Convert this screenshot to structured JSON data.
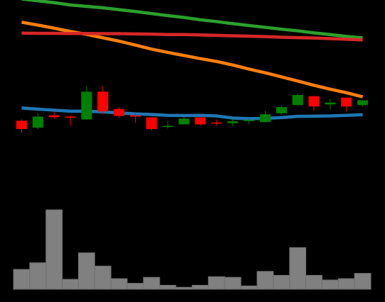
{
  "chart_data": {
    "type": "candlestick",
    "background": "#000000",
    "candle_up_color": "#008000",
    "candle_down_color": "#ff0000",
    "volume_color": "#808080",
    "price_ylim": [
      0,
      100
    ],
    "volume_ylim": [
      0,
      12
    ],
    "candles": [
      {
        "o": 41.3,
        "h": 41.9,
        "l": 35.4,
        "c": 37.2
      },
      {
        "o": 37.9,
        "h": 44.9,
        "l": 37.2,
        "c": 43.3
      },
      {
        "o": 43.9,
        "h": 45.8,
        "l": 42.0,
        "c": 43.0
      },
      {
        "o": 43.3,
        "h": 43.9,
        "l": 38.8,
        "c": 42.9
      },
      {
        "o": 41.9,
        "h": 58.1,
        "l": 41.6,
        "c": 55.4
      },
      {
        "o": 55.4,
        "h": 58.1,
        "l": 44.6,
        "c": 45.8
      },
      {
        "o": 47.0,
        "h": 47.9,
        "l": 42.6,
        "c": 43.6
      },
      {
        "o": 43.9,
        "h": 44.9,
        "l": 40.3,
        "c": 43.3
      },
      {
        "o": 42.9,
        "h": 42.9,
        "l": 36.5,
        "c": 37.2
      },
      {
        "o": 38.2,
        "h": 41.3,
        "l": 37.5,
        "c": 38.8
      },
      {
        "o": 39.5,
        "h": 42.9,
        "l": 39.5,
        "c": 42.3
      },
      {
        "o": 42.9,
        "h": 42.9,
        "l": 38.8,
        "c": 39.5
      },
      {
        "o": 40.4,
        "h": 41.9,
        "l": 38.8,
        "c": 40.1
      },
      {
        "o": 40.1,
        "h": 42.0,
        "l": 38.5,
        "c": 41.0
      },
      {
        "o": 41.3,
        "h": 42.3,
        "l": 39.5,
        "c": 41.6
      },
      {
        "o": 40.6,
        "h": 46.1,
        "l": 40.6,
        "c": 44.4
      },
      {
        "o": 44.9,
        "h": 48.9,
        "l": 44.2,
        "c": 47.9
      },
      {
        "o": 48.9,
        "h": 54.7,
        "l": 48.2,
        "c": 53.8
      },
      {
        "o": 53.2,
        "h": 53.5,
        "l": 46.2,
        "c": 48.2
      },
      {
        "o": 49.2,
        "h": 51.9,
        "l": 46.8,
        "c": 50.1
      },
      {
        "o": 52.5,
        "h": 52.5,
        "l": 45.9,
        "c": 48.2
      },
      {
        "o": 48.9,
        "h": 51.5,
        "l": 48.2,
        "c": 51.2
      }
    ],
    "volume": [
      3.0,
      4.0,
      12.0,
      1.5,
      5.5,
      3.5,
      1.6,
      0.9,
      1.8,
      0.6,
      0.3,
      0.6,
      1.9,
      1.8,
      0.5,
      2.7,
      2.1,
      6.3,
      2.1,
      1.4,
      1.6,
      2.4
    ],
    "moving_averages": [
      {
        "color": "#2ca02c",
        "values": [
          100.5,
          99.6,
          98.7,
          97.6,
          96.9,
          96.2,
          95.3,
          94.4,
          93.4,
          92.4,
          91.5,
          90.4,
          89.5,
          88.5,
          87.6,
          86.7,
          85.8,
          85.0,
          84.0,
          83.2,
          82.3,
          81.6
        ]
      },
      {
        "color": "#ff7f0e",
        "values": [
          89.2,
          87.8,
          86.3,
          84.7,
          83.3,
          81.6,
          80.0,
          78.1,
          76.1,
          74.5,
          73.0,
          71.5,
          70.1,
          68.4,
          66.4,
          64.6,
          62.6,
          60.6,
          58.5,
          56.6,
          54.9,
          52.9
        ]
      },
      {
        "color": "#d62728",
        "values": [
          83.9,
          83.8,
          83.8,
          83.7,
          83.7,
          83.6,
          83.6,
          83.5,
          83.4,
          83.2,
          83.2,
          83.0,
          82.8,
          82.6,
          82.4,
          82.2,
          81.9,
          81.7,
          81.5,
          81.2,
          80.9,
          80.6
        ]
      },
      {
        "color": "#1f77b4",
        "values": [
          47.5,
          46.9,
          46.4,
          45.9,
          45.9,
          45.6,
          45.1,
          44.6,
          44.3,
          43.9,
          43.8,
          43.9,
          43.6,
          42.6,
          42.3,
          42.4,
          42.8,
          43.4,
          43.5,
          43.6,
          43.9,
          44.2
        ]
      }
    ]
  }
}
